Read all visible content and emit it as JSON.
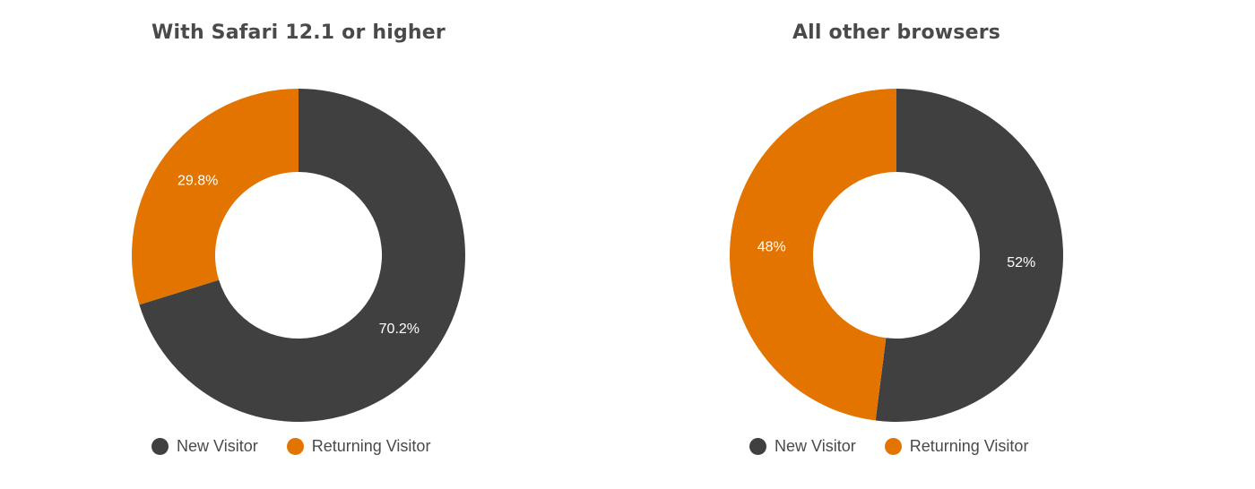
{
  "colors": {
    "new_visitor": "#404040",
    "returning_visitor": "#e37400"
  },
  "chart_data": [
    {
      "type": "pie",
      "title": "With Safari 12.1 or higher",
      "donut": true,
      "legend_position": "bottom",
      "slices": [
        {
          "name": "New Visitor",
          "value": 70.2,
          "label": "70.2%",
          "color": "#404040"
        },
        {
          "name": "Returning Visitor",
          "value": 29.8,
          "label": "29.8%",
          "color": "#e37400"
        }
      ]
    },
    {
      "type": "pie",
      "title": "All other browsers",
      "donut": true,
      "legend_position": "bottom",
      "slices": [
        {
          "name": "New Visitor",
          "value": 52,
          "label": "52%",
          "color": "#404040"
        },
        {
          "name": "Returning Visitor",
          "value": 48,
          "label": "48%",
          "color": "#e37400"
        }
      ]
    }
  ]
}
